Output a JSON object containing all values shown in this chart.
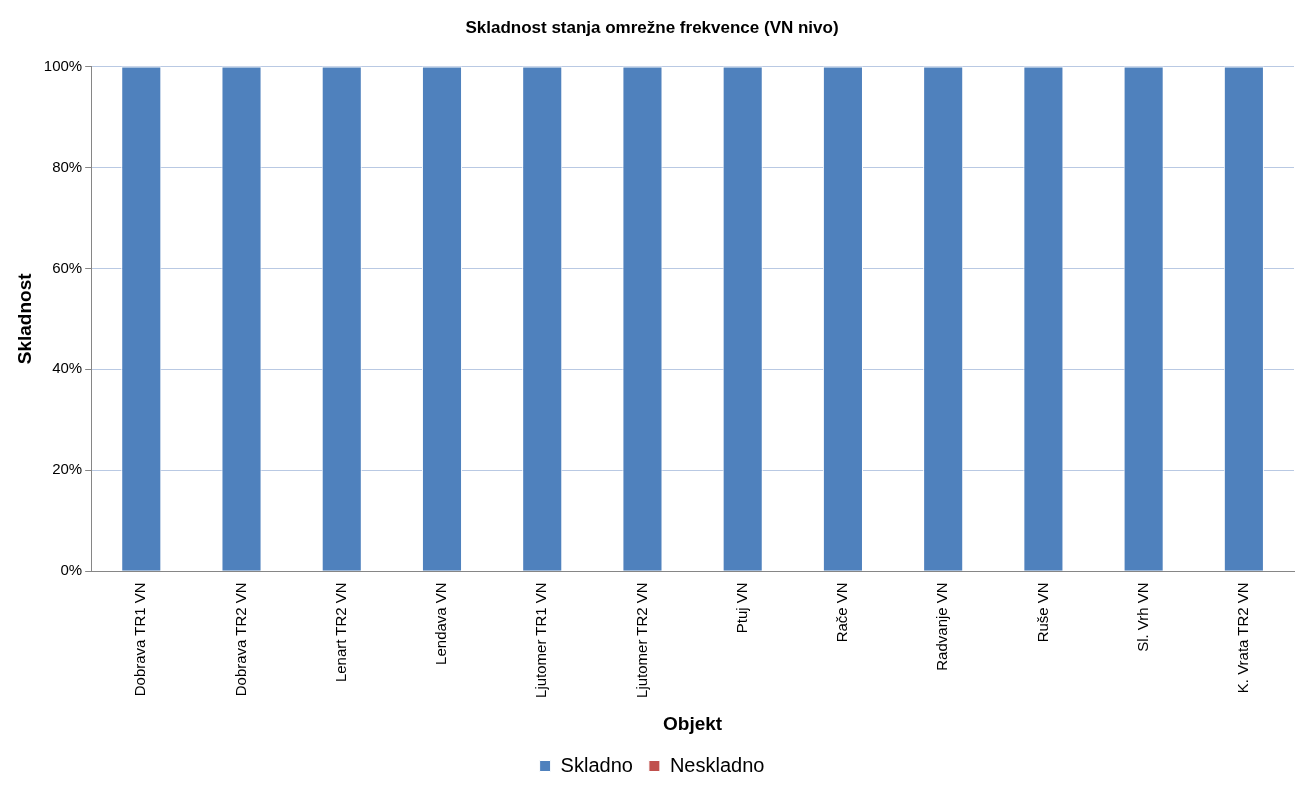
{
  "chart_data": {
    "type": "bar",
    "title": "Skladnost stanja omrežne frekvence (VN nivo)",
    "xlabel": "Objekt",
    "ylabel": "Skladnost",
    "categories": [
      "Dobrava TR1 VN",
      "Dobrava TR2 VN",
      "Lenart TR2 VN",
      "Lendava VN",
      "Ljutomer TR1 VN",
      "Ljutomer TR2 VN",
      "Ptuj VN",
      "Rače VN",
      "Radvanje VN",
      "Ruše VN",
      "Sl. Vrh VN",
      "K. Vrata TR2 VN"
    ],
    "series": [
      {
        "name": "Skladno",
        "color": "#4f81bd",
        "values": [
          100,
          100,
          100,
          100,
          100,
          100,
          100,
          100,
          100,
          100,
          100,
          100
        ]
      },
      {
        "name": "Neskladno",
        "color": "#c0504d",
        "values": [
          0,
          0,
          0,
          0,
          0,
          0,
          0,
          0,
          0,
          0,
          0,
          0
        ]
      }
    ],
    "stacked": true,
    "ylim": [
      0,
      100
    ],
    "yticks": [
      {
        "value": 0,
        "label": "0%"
      },
      {
        "value": 20,
        "label": "20%"
      },
      {
        "value": 40,
        "label": "40%"
      },
      {
        "value": 60,
        "label": "60%"
      },
      {
        "value": 80,
        "label": "80%"
      },
      {
        "value": 100,
        "label": "100%"
      }
    ],
    "grid": "y",
    "legend": "bottom"
  }
}
